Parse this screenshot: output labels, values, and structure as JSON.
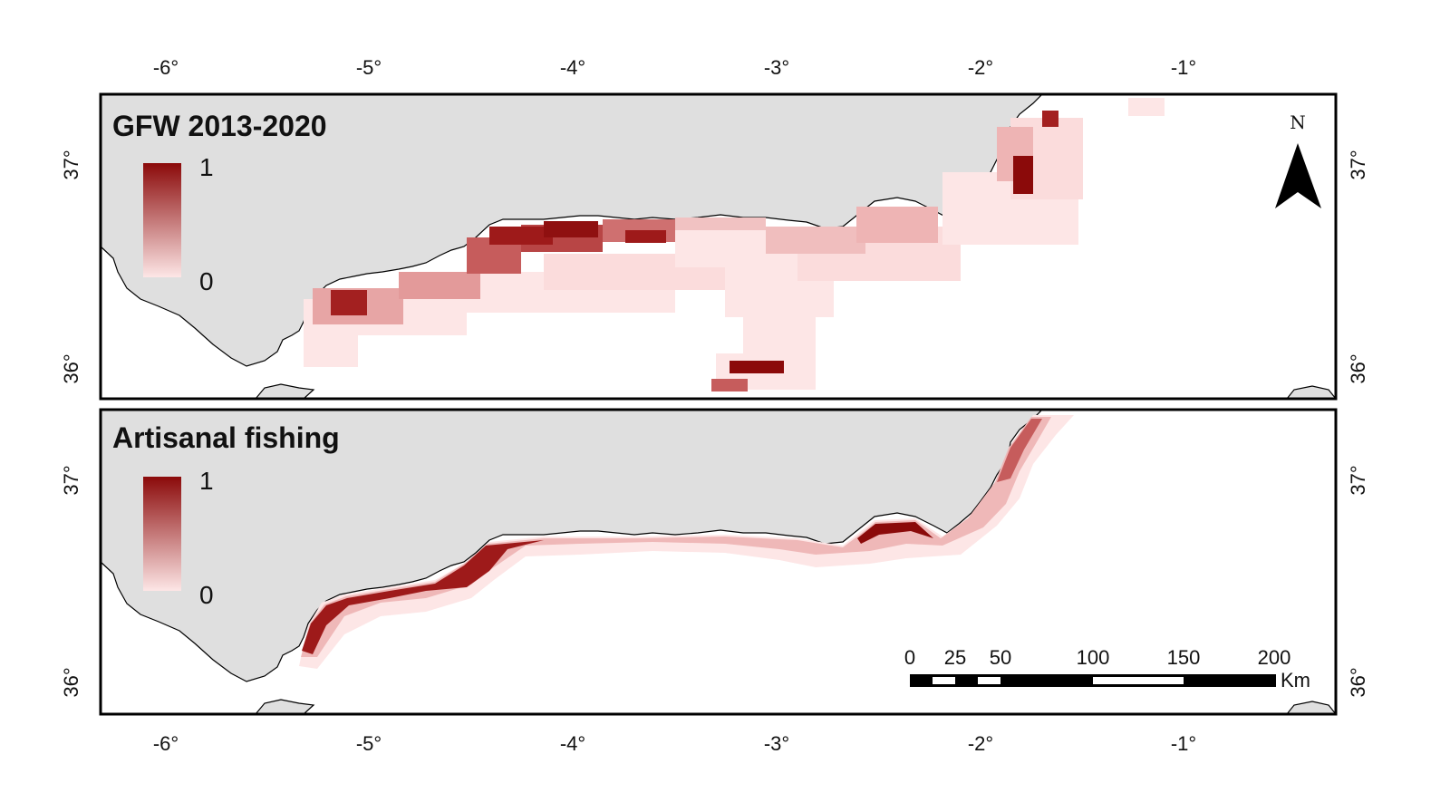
{
  "colors": {
    "land": "#dfdfdf",
    "sea": "#ffffff",
    "low": "#fde6e6",
    "high": "#8b0a0a",
    "frame": "#000000"
  },
  "axes": {
    "lon_ticks": [
      "-6°",
      "-5°",
      "-4°",
      "-3°",
      "-2°",
      "-1°"
    ],
    "lat_ticks": [
      "36°",
      "37°"
    ]
  },
  "panels": [
    {
      "title": "GFW 2013-2020",
      "legend": {
        "max": "1",
        "min": "0"
      },
      "north_label": "N"
    },
    {
      "title": "Artisanal fishing",
      "legend": {
        "max": "1",
        "min": "0"
      }
    }
  ],
  "scalebar": {
    "labels": [
      "0",
      "25",
      "50",
      "100",
      "150",
      "200"
    ],
    "unit": "Km"
  }
}
